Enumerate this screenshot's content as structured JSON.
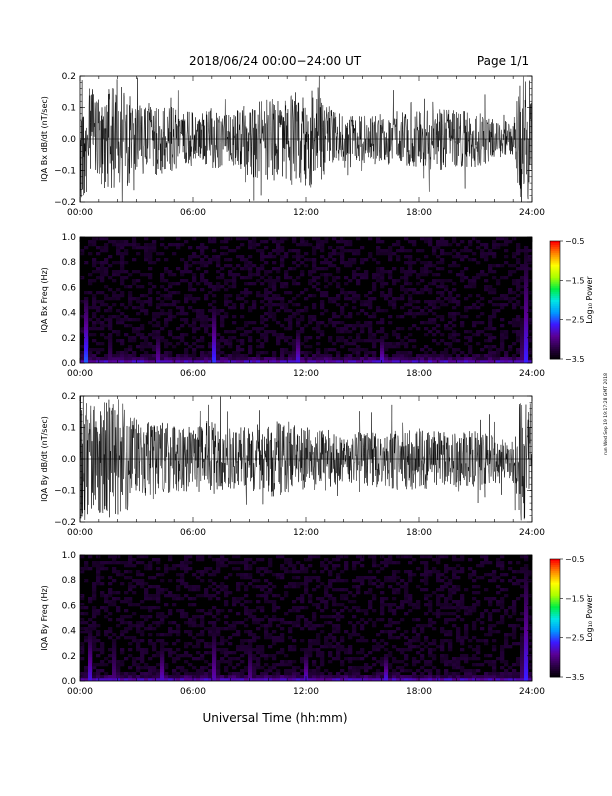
{
  "header": {
    "title": "2018/06/24  00:00−24:00 UT",
    "page_label": "Page 1/1"
  },
  "footer": {
    "xlabel": "Universal Time (hh:mm)"
  },
  "side_stamp": "run Wed Sep 19 19:17:28 GMT 2018",
  "colors": {
    "trace": "#000000",
    "colormap": [
      "#000000",
      "#2b0045",
      "#5a0096",
      "#3c18ff",
      "#0099ff",
      "#00e5e5",
      "#00ee44",
      "#aaff00",
      "#ffff00",
      "#ff8800",
      "#ff0000"
    ]
  },
  "chart_data": [
    {
      "type": "line",
      "ylabel": "IQA Bx dB/dt (nT/sec)",
      "x_ticks": [
        "00:00",
        "06:00",
        "12:00",
        "18:00",
        "24:00"
      ],
      "y_ticks": [
        "0.2",
        "0.1",
        "0.0",
        "−0.1",
        "−0.2"
      ],
      "xlim": [
        0,
        24
      ],
      "ylim": [
        -0.2,
        0.2
      ],
      "series": [
        {
          "x": [
            0,
            1,
            2,
            3,
            4,
            5,
            6,
            7,
            8,
            9,
            10,
            11,
            12,
            13,
            14,
            15,
            16,
            17,
            18,
            19,
            20,
            21,
            22,
            23,
            23.4,
            24
          ],
          "envelope": [
            0.2,
            0.14,
            0.2,
            0.11,
            0.12,
            0.1,
            0.09,
            0.1,
            0.08,
            0.12,
            0.13,
            0.14,
            0.17,
            0.12,
            0.07,
            0.08,
            0.08,
            0.09,
            0.09,
            0.1,
            0.09,
            0.09,
            0.07,
            0.05,
            0.2,
            0.2
          ]
        }
      ]
    },
    {
      "type": "heatmap",
      "ylabel": "IQA Bx Freq (Hz)",
      "x_ticks": [
        "00:00",
        "06:00",
        "12:00",
        "18:00",
        "24:00"
      ],
      "y_ticks": [
        "1.0",
        "0.8",
        "0.6",
        "0.4",
        "0.2",
        "0.0"
      ],
      "xlim": [
        0,
        24
      ],
      "ylim": [
        0,
        1.0
      ],
      "colorbar": {
        "label": "Log₁₀ Power",
        "ticks": [
          "−0.5",
          "−1.5",
          "−2.5",
          "−3.5"
        ],
        "range": [
          -3.5,
          -0.5
        ]
      },
      "features": [
        {
          "t": 0.3,
          "fmax": 0.5,
          "level": -2.4
        },
        {
          "t": 1.5,
          "fmax": 0.7,
          "level": -2.6
        },
        {
          "t": 4.2,
          "fmax": 0.35,
          "level": -2.6
        },
        {
          "t": 7.1,
          "fmax": 0.45,
          "level": -2.5
        },
        {
          "t": 8.9,
          "fmax": 0.25,
          "level": -2.7
        },
        {
          "t": 11.6,
          "fmax": 0.3,
          "level": -2.6
        },
        {
          "t": 16.0,
          "fmax": 0.25,
          "level": -2.6
        },
        {
          "t": 23.6,
          "fmax": 0.9,
          "level": -2.2
        }
      ]
    },
    {
      "type": "line",
      "ylabel": "IQA By dB/dt (nT/sec)",
      "x_ticks": [
        "00:00",
        "06:00",
        "12:00",
        "18:00",
        "24:00"
      ],
      "y_ticks": [
        "0.2",
        "0.1",
        "0.0",
        "−0.1",
        "−0.2"
      ],
      "xlim": [
        0,
        24
      ],
      "ylim": [
        -0.2,
        0.2
      ],
      "series": [
        {
          "x": [
            0,
            1,
            2,
            3,
            4,
            5,
            6,
            7,
            8,
            9,
            10,
            11,
            12,
            13,
            14,
            15,
            16,
            17,
            18,
            19,
            20,
            21,
            22,
            23,
            23.4,
            24
          ],
          "envelope": [
            0.2,
            0.18,
            0.2,
            0.13,
            0.12,
            0.11,
            0.1,
            0.12,
            0.1,
            0.11,
            0.12,
            0.12,
            0.1,
            0.1,
            0.07,
            0.09,
            0.09,
            0.1,
            0.1,
            0.09,
            0.09,
            0.09,
            0.08,
            0.07,
            0.2,
            0.2
          ]
        }
      ]
    },
    {
      "type": "heatmap",
      "ylabel": "IQA By Freq (Hz)",
      "x_ticks": [
        "00:00",
        "06:00",
        "12:00",
        "18:00",
        "24:00"
      ],
      "y_ticks": [
        "1.0",
        "0.8",
        "0.6",
        "0.4",
        "0.2",
        "0.0"
      ],
      "xlim": [
        0,
        24
      ],
      "ylim": [
        0,
        1.0
      ],
      "colorbar": {
        "label": "Log₁₀ Power",
        "ticks": [
          "−0.5",
          "−1.5",
          "−2.5",
          "−3.5"
        ],
        "range": [
          -3.5,
          -0.5
        ]
      },
      "features": [
        {
          "t": 0.6,
          "fmax": 0.5,
          "level": -2.4
        },
        {
          "t": 1.9,
          "fmax": 0.75,
          "level": -2.5
        },
        {
          "t": 4.4,
          "fmax": 0.35,
          "level": -2.6
        },
        {
          "t": 7.2,
          "fmax": 0.6,
          "level": -2.4
        },
        {
          "t": 9.1,
          "fmax": 0.55,
          "level": -2.6
        },
        {
          "t": 12.0,
          "fmax": 0.3,
          "level": -2.7
        },
        {
          "t": 16.2,
          "fmax": 0.25,
          "level": -2.5
        },
        {
          "t": 23.6,
          "fmax": 0.95,
          "level": -2.2
        }
      ]
    }
  ]
}
